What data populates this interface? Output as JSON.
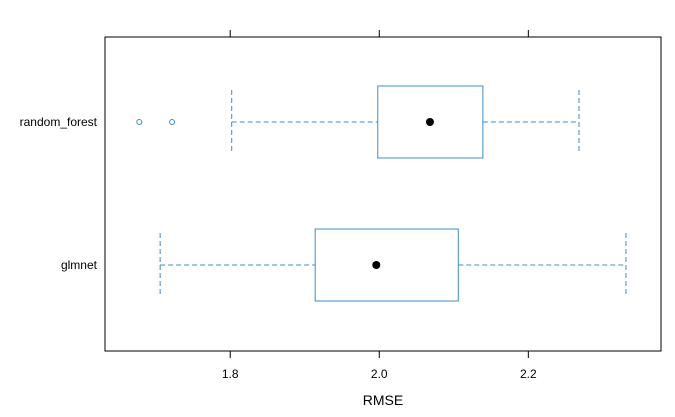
{
  "chart_data": {
    "type": "boxplot",
    "title": "",
    "xlabel": "RMSE",
    "ylabel": "",
    "xlim": [
      1.632,
      2.378
    ],
    "x_ticks": [
      1.8,
      2.0,
      2.2
    ],
    "x_tick_labels": [
      "1.8",
      "2.0",
      "2.2"
    ],
    "categories": [
      "random_forest",
      "glmnet"
    ],
    "series": [
      {
        "name": "random_forest",
        "whisker_low": 1.802,
        "q1": 1.998,
        "median": 2.068,
        "q3": 2.139,
        "whisker_high": 2.268,
        "outliers": [
          1.678,
          1.722
        ]
      },
      {
        "name": "glmnet",
        "whisker_low": 1.706,
        "q1": 1.914,
        "median": 1.996,
        "q3": 2.106,
        "whisker_high": 2.331,
        "outliers": []
      }
    ],
    "grid": false,
    "legend": "none",
    "colors": {
      "box": "#3b8fc4",
      "median_dot": "#000000",
      "frame": "#000000"
    }
  }
}
